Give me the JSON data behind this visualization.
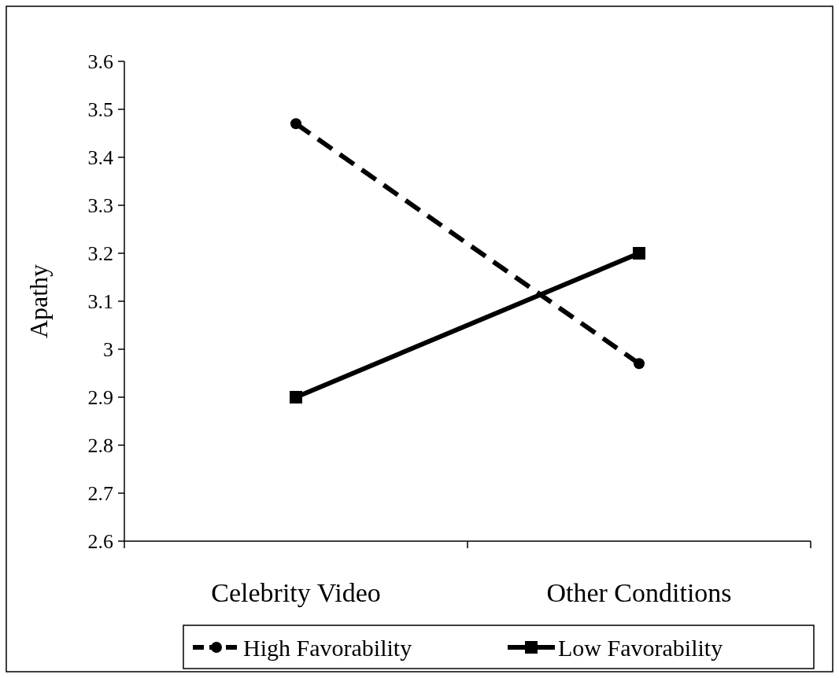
{
  "chart_data": {
    "type": "line",
    "ylabel": "Apathy",
    "categories": [
      "Celebrity Video",
      "Other Conditions"
    ],
    "series": [
      {
        "name": "High Favorability",
        "color": "#000000",
        "values": [
          3.47,
          2.97
        ],
        "marker": "circle",
        "line_style": "dashed"
      },
      {
        "name": "Low Favorability",
        "color": "#000000",
        "values": [
          2.9,
          3.2
        ],
        "marker": "square",
        "line_style": "solid"
      }
    ],
    "ylim": [
      2.6,
      3.6
    ],
    "yticks": [
      2.6,
      2.7,
      2.8,
      2.9,
      3,
      3.1,
      3.2,
      3.3,
      3.4,
      3.5,
      3.6
    ],
    "legend": "bottom"
  }
}
